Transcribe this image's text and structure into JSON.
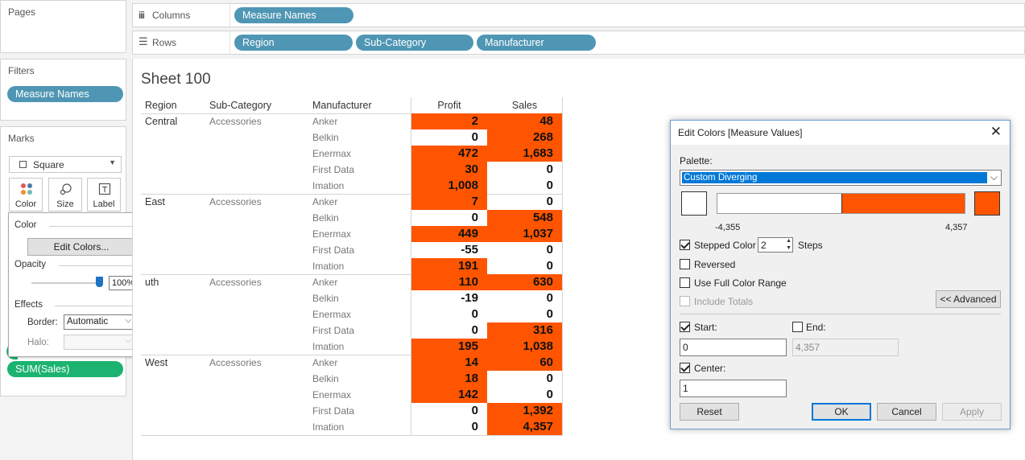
{
  "pages": {
    "title": "Pages"
  },
  "filters": {
    "title": "Filters",
    "pills": [
      "Measure Names"
    ]
  },
  "marks": {
    "title": "Marks",
    "mark_type": "Square",
    "buttons": [
      {
        "label": "Color"
      },
      {
        "label": "Size"
      },
      {
        "label": "Label"
      }
    ],
    "pills": [
      "SUM(Sales)"
    ]
  },
  "shelves": {
    "columns": {
      "label": "Columns",
      "pills": [
        "Measure Names"
      ]
    },
    "rows": {
      "label": "Rows",
      "pills": [
        "Region",
        "Sub-Category",
        "Manufacturer"
      ]
    }
  },
  "color_popup": {
    "color_label": "Color",
    "edit_colors_button": "Edit Colors...",
    "opacity_label": "Opacity",
    "opacity_value": "100%",
    "opacity_level": 1.0,
    "effects_label": "Effects",
    "border_label": "Border:",
    "border_value": "Automatic",
    "halo_label": "Halo:"
  },
  "sheet": {
    "title": "Sheet 100",
    "headers": {
      "region": "Region",
      "subcat": "Sub-Category",
      "manufacturer": "Manufacturer",
      "profit": "Profit",
      "sales": "Sales"
    },
    "groups": [
      {
        "region": "Central",
        "subcat": "Accessories",
        "rows": [
          {
            "m": "Anker",
            "profit": "2",
            "sales": "48",
            "p_on": true,
            "s_on": true
          },
          {
            "m": "Belkin",
            "profit": "0",
            "sales": "268",
            "p_on": false,
            "s_on": true
          },
          {
            "m": "Enermax",
            "profit": "472",
            "sales": "1,683",
            "p_on": true,
            "s_on": true
          },
          {
            "m": "First Data",
            "profit": "30",
            "sales": "0",
            "p_on": true,
            "s_on": false
          },
          {
            "m": "Imation",
            "profit": "1,008",
            "sales": "0",
            "p_on": true,
            "s_on": false
          }
        ]
      },
      {
        "region": "East",
        "subcat": "Accessories",
        "rows": [
          {
            "m": "Anker",
            "profit": "7",
            "sales": "0",
            "p_on": true,
            "s_on": false
          },
          {
            "m": "Belkin",
            "profit": "0",
            "sales": "548",
            "p_on": false,
            "s_on": true
          },
          {
            "m": "Enermax",
            "profit": "449",
            "sales": "1,037",
            "p_on": true,
            "s_on": true
          },
          {
            "m": "First Data",
            "profit": "-55",
            "sales": "0",
            "p_on": false,
            "s_on": false
          },
          {
            "m": "Imation",
            "profit": "191",
            "sales": "0",
            "p_on": true,
            "s_on": false
          }
        ]
      },
      {
        "region": "uth",
        "subcat": "Accessories",
        "rows": [
          {
            "m": "Anker",
            "profit": "110",
            "sales": "630",
            "p_on": true,
            "s_on": true
          },
          {
            "m": "Belkin",
            "profit": "-19",
            "sales": "0",
            "p_on": false,
            "s_on": false
          },
          {
            "m": "Enermax",
            "profit": "0",
            "sales": "0",
            "p_on": false,
            "s_on": false
          },
          {
            "m": "First Data",
            "profit": "0",
            "sales": "316",
            "p_on": false,
            "s_on": true
          },
          {
            "m": "Imation",
            "profit": "195",
            "sales": "1,038",
            "p_on": true,
            "s_on": true
          }
        ]
      },
      {
        "region": "West",
        "subcat": "Accessories",
        "rows": [
          {
            "m": "Anker",
            "profit": "14",
            "sales": "60",
            "p_on": true,
            "s_on": true
          },
          {
            "m": "Belkin",
            "profit": "18",
            "sales": "0",
            "p_on": true,
            "s_on": false
          },
          {
            "m": "Enermax",
            "profit": "142",
            "sales": "0",
            "p_on": true,
            "s_on": false
          },
          {
            "m": "First Data",
            "profit": "0",
            "sales": "1,392",
            "p_on": false,
            "s_on": true
          },
          {
            "m": "Imation",
            "profit": "0",
            "sales": "4,357",
            "p_on": false,
            "s_on": true
          }
        ]
      }
    ]
  },
  "dialog": {
    "title": "Edit Colors [Measure Values]",
    "palette_label": "Palette:",
    "palette_value": "Custom Diverging",
    "range_min": "-4,355",
    "range_max": "4,357",
    "stepped_color_label": "Stepped Color",
    "stepped_checked": true,
    "steps_value": "2",
    "steps_label": "Steps",
    "reversed_label": "Reversed",
    "full_range_label": "Use Full Color Range",
    "include_totals_label": "Include Totals",
    "advanced_button": "<< Advanced",
    "start_label": "Start:",
    "start_checked": true,
    "start_value": "0",
    "end_label": "End:",
    "end_value": "4,357",
    "center_label": "Center:",
    "center_checked": true,
    "center_value": "1",
    "reset_button": "Reset",
    "ok_button": "OK",
    "cancel_button": "Cancel",
    "apply_button": "Apply"
  },
  "colors": {
    "accent": "#ff5500",
    "pill": "#4f96b4",
    "pill_green": "#1bb36f",
    "low": "#ffffff"
  }
}
